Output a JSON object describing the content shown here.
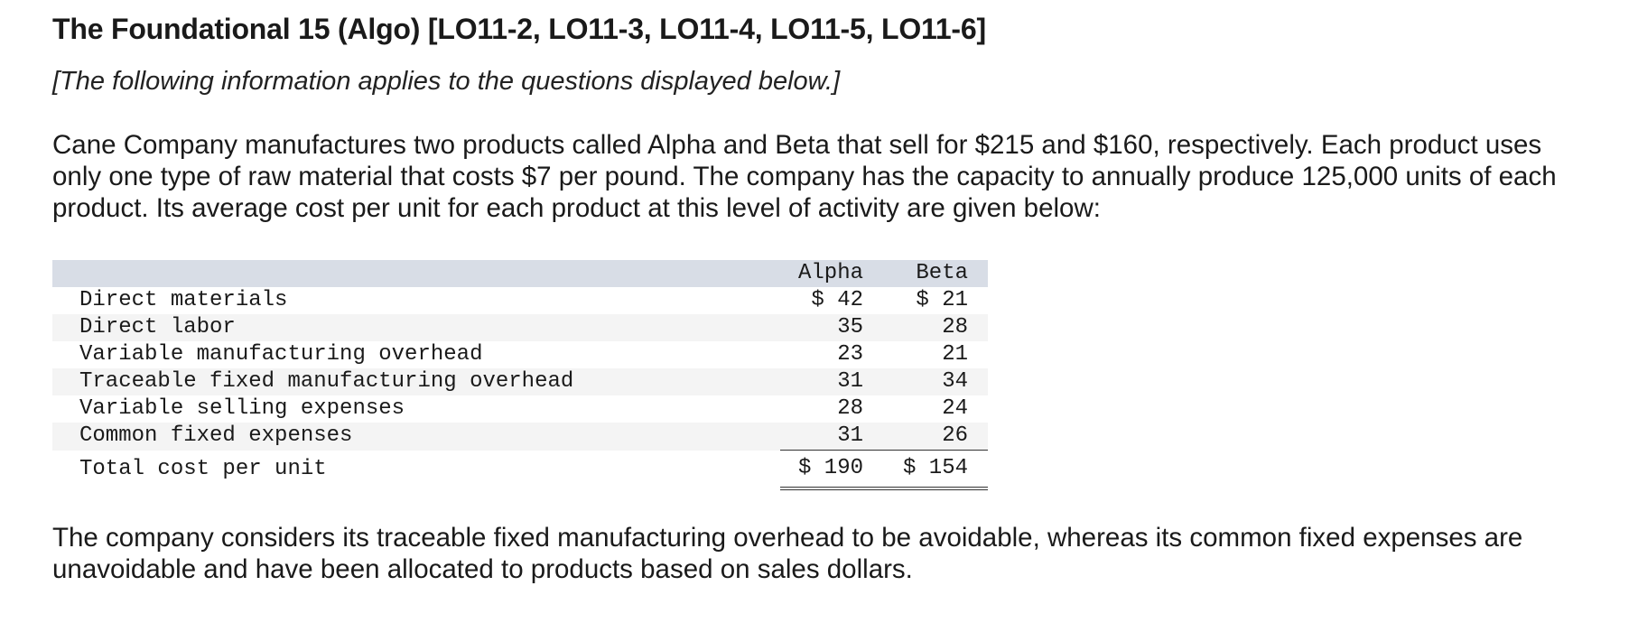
{
  "heading": "The Foundational 15 (Algo) [LO11-2, LO11-3, LO11-4, LO11-5, LO11-6]",
  "note": "[The following information applies to the questions displayed below.]",
  "intro": "Cane Company manufactures two products called Alpha and Beta that sell for $215 and $160, respectively. Each product uses only one type of raw material that costs $7 per pound. The company has the capacity to annually produce 125,000 units of each product. Its average cost per unit for each product at this level of activity are given below:",
  "table": {
    "columns": [
      "Alpha",
      "Beta"
    ],
    "rows": [
      {
        "label": "Direct materials",
        "alpha": "$ 42",
        "beta": "$ 21"
      },
      {
        "label": "Direct labor",
        "alpha": "35",
        "beta": "28"
      },
      {
        "label": "Variable manufacturing overhead",
        "alpha": "23",
        "beta": "21"
      },
      {
        "label": "Traceable fixed manufacturing overhead",
        "alpha": "31",
        "beta": "34"
      },
      {
        "label": "Variable selling expenses",
        "alpha": "28",
        "beta": "24"
      },
      {
        "label": "Common fixed expenses",
        "alpha": "31",
        "beta": "26"
      }
    ],
    "total": {
      "label": "Total cost per unit",
      "alpha": "$ 190",
      "beta": "$ 154"
    }
  },
  "closing": "The company considers its traceable fixed manufacturing overhead to be avoidable, whereas its common fixed expenses are unavoidable and have been allocated to products based on sales dollars."
}
